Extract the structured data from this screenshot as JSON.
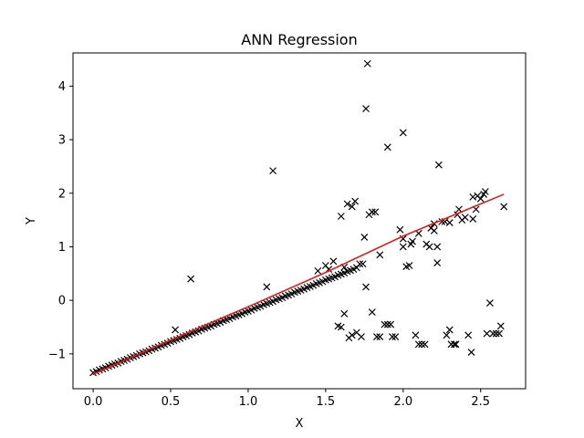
{
  "chart_data": {
    "type": "scatter",
    "title": "ANN Regression",
    "xlabel": "X",
    "ylabel": "Y",
    "xlim": [
      -0.13,
      2.79
    ],
    "ylim": [
      -1.65,
      4.62
    ],
    "xticks": [
      0.0,
      0.5,
      1.0,
      1.5,
      2.0,
      2.5
    ],
    "xtick_labels": [
      "0.0",
      "0.5",
      "1.0",
      "1.5",
      "2.0",
      "2.5"
    ],
    "yticks": [
      -1,
      0,
      1,
      2,
      3,
      4
    ],
    "ytick_labels": [
      "−1",
      "0",
      "1",
      "2",
      "3",
      "4"
    ],
    "grid": false,
    "series": [
      {
        "kind": "scatter",
        "marker": "x",
        "color": "#000000",
        "points": [
          [
            0.0,
            -1.35
          ],
          [
            0.02,
            -1.33
          ],
          [
            0.04,
            -1.3
          ],
          [
            0.06,
            -1.28
          ],
          [
            0.08,
            -1.26
          ],
          [
            0.1,
            -1.23
          ],
          [
            0.12,
            -1.21
          ],
          [
            0.14,
            -1.19
          ],
          [
            0.16,
            -1.17
          ],
          [
            0.18,
            -1.14
          ],
          [
            0.2,
            -1.12
          ],
          [
            0.22,
            -1.1
          ],
          [
            0.24,
            -1.07
          ],
          [
            0.26,
            -1.05
          ],
          [
            0.28,
            -1.03
          ],
          [
            0.3,
            -1.0
          ],
          [
            0.32,
            -0.98
          ],
          [
            0.34,
            -0.96
          ],
          [
            0.36,
            -0.94
          ],
          [
            0.38,
            -0.91
          ],
          [
            0.4,
            -0.89
          ],
          [
            0.42,
            -0.87
          ],
          [
            0.44,
            -0.84
          ],
          [
            0.46,
            -0.82
          ],
          [
            0.48,
            -0.8
          ],
          [
            0.5,
            -0.77
          ],
          [
            0.52,
            -0.75
          ],
          [
            0.54,
            -0.73
          ],
          [
            0.56,
            -0.71
          ],
          [
            0.58,
            -0.68
          ],
          [
            0.6,
            -0.66
          ],
          [
            0.62,
            -0.64
          ],
          [
            0.64,
            -0.61
          ],
          [
            0.66,
            -0.59
          ],
          [
            0.68,
            -0.57
          ],
          [
            0.7,
            -0.54
          ],
          [
            0.72,
            -0.52
          ],
          [
            0.74,
            -0.5
          ],
          [
            0.76,
            -0.48
          ],
          [
            0.78,
            -0.45
          ],
          [
            0.8,
            -0.43
          ],
          [
            0.82,
            -0.41
          ],
          [
            0.84,
            -0.38
          ],
          [
            0.86,
            -0.36
          ],
          [
            0.88,
            -0.34
          ],
          [
            0.9,
            -0.31
          ],
          [
            0.92,
            -0.29
          ],
          [
            0.94,
            -0.27
          ],
          [
            0.96,
            -0.25
          ],
          [
            0.98,
            -0.22
          ],
          [
            1.0,
            -0.2
          ],
          [
            1.02,
            -0.18
          ],
          [
            1.04,
            -0.15
          ],
          [
            1.06,
            -0.13
          ],
          [
            1.08,
            -0.11
          ],
          [
            1.1,
            -0.08
          ],
          [
            1.12,
            -0.06
          ],
          [
            1.14,
            -0.04
          ],
          [
            1.16,
            -0.02
          ],
          [
            1.18,
            0.01
          ],
          [
            1.2,
            0.03
          ],
          [
            1.22,
            0.05
          ],
          [
            1.24,
            0.08
          ],
          [
            1.26,
            0.1
          ],
          [
            1.28,
            0.12
          ],
          [
            1.3,
            0.15
          ],
          [
            1.32,
            0.17
          ],
          [
            1.34,
            0.19
          ],
          [
            1.36,
            0.21
          ],
          [
            1.38,
            0.24
          ],
          [
            1.4,
            0.26
          ],
          [
            1.42,
            0.28
          ],
          [
            1.44,
            0.31
          ],
          [
            1.46,
            0.33
          ],
          [
            1.48,
            0.35
          ],
          [
            1.5,
            0.38
          ],
          [
            1.52,
            0.4
          ],
          [
            1.54,
            0.42
          ],
          [
            1.56,
            0.44
          ],
          [
            1.58,
            0.47
          ],
          [
            1.6,
            0.49
          ],
          [
            1.62,
            0.51
          ],
          [
            1.64,
            0.54
          ],
          [
            1.66,
            0.56
          ],
          [
            1.68,
            0.58
          ],
          [
            1.7,
            0.61
          ],
          [
            0.53,
            -0.55
          ],
          [
            0.63,
            0.4
          ],
          [
            1.16,
            2.42
          ],
          [
            1.12,
            0.25
          ],
          [
            1.45,
            0.55
          ],
          [
            1.5,
            0.65
          ],
          [
            1.52,
            0.58
          ],
          [
            1.55,
            0.73
          ],
          [
            1.62,
            0.62
          ],
          [
            1.72,
            0.68
          ],
          [
            1.74,
            0.68
          ],
          [
            1.85,
            0.85
          ],
          [
            1.6,
            1.57
          ],
          [
            1.64,
            1.8
          ],
          [
            1.67,
            1.75
          ],
          [
            1.69,
            1.85
          ],
          [
            1.75,
            1.18
          ],
          [
            1.78,
            1.6
          ],
          [
            1.8,
            1.65
          ],
          [
            1.82,
            1.65
          ],
          [
            1.76,
            0.25
          ],
          [
            1.58,
            -0.48
          ],
          [
            1.6,
            -0.5
          ],
          [
            1.62,
            -0.25
          ],
          [
            1.65,
            -0.7
          ],
          [
            1.67,
            -0.65
          ],
          [
            1.7,
            -0.6
          ],
          [
            1.73,
            -0.68
          ],
          [
            1.8,
            -0.22
          ],
          [
            1.83,
            -0.68
          ],
          [
            1.85,
            -0.68
          ],
          [
            1.88,
            -0.45
          ],
          [
            1.9,
            -0.45
          ],
          [
            1.92,
            -0.45
          ],
          [
            1.93,
            -0.68
          ],
          [
            1.95,
            -0.68
          ],
          [
            1.77,
            4.42
          ],
          [
            1.76,
            3.58
          ],
          [
            2.0,
            3.13
          ],
          [
            1.9,
            2.86
          ],
          [
            2.23,
            2.53
          ],
          [
            1.98,
            1.32
          ],
          [
            2.0,
            1.15
          ],
          [
            2.02,
            0.63
          ],
          [
            2.04,
            0.65
          ],
          [
            2.05,
            1.05
          ],
          [
            2.06,
            1.1
          ],
          [
            2.08,
            -0.65
          ],
          [
            2.1,
            -0.82
          ],
          [
            2.12,
            -0.82
          ],
          [
            2.14,
            -0.82
          ],
          [
            2.15,
            1.05
          ],
          [
            2.17,
            1.0
          ],
          [
            2.18,
            1.35
          ],
          [
            2.2,
            1.43
          ],
          [
            2.22,
            0.7
          ],
          [
            2.22,
            1.0
          ],
          [
            2.25,
            1.47
          ],
          [
            2.27,
            1.47
          ],
          [
            2.28,
            -0.65
          ],
          [
            2.3,
            -0.55
          ],
          [
            2.31,
            -0.82
          ],
          [
            2.33,
            -0.82
          ],
          [
            2.34,
            -0.82
          ],
          [
            2.36,
            1.7
          ],
          [
            2.38,
            1.5
          ],
          [
            2.4,
            1.55
          ],
          [
            2.42,
            -0.65
          ],
          [
            2.44,
            -0.97
          ],
          [
            2.45,
            1.52
          ],
          [
            2.45,
            1.93
          ],
          [
            2.47,
            1.7
          ],
          [
            2.48,
            1.95
          ],
          [
            2.5,
            1.9
          ],
          [
            2.52,
            1.98
          ],
          [
            2.53,
            2.03
          ],
          [
            2.54,
            -0.62
          ],
          [
            2.56,
            -0.05
          ],
          [
            2.58,
            -0.62
          ],
          [
            2.6,
            -0.62
          ],
          [
            2.62,
            -0.62
          ],
          [
            2.63,
            -0.48
          ],
          [
            2.65,
            1.75
          ],
          [
            2.3,
            1.45
          ],
          [
            2.35,
            1.6
          ],
          [
            2.2,
            1.3
          ],
          [
            2.1,
            1.25
          ],
          [
            2.0,
            1.0
          ]
        ]
      },
      {
        "kind": "line",
        "color": "#e31a1c",
        "points": [
          [
            0.0,
            -1.38
          ],
          [
            0.5,
            -0.74
          ],
          [
            1.0,
            -0.12
          ],
          [
            1.5,
            0.52
          ],
          [
            2.0,
            1.2
          ],
          [
            2.65,
            1.98
          ]
        ]
      }
    ]
  }
}
